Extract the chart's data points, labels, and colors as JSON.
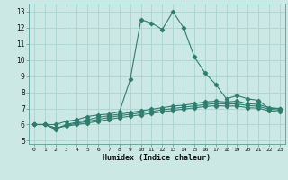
{
  "xlabel": "Humidex (Indice chaleur)",
  "x_values": [
    0,
    1,
    2,
    3,
    4,
    5,
    6,
    7,
    8,
    9,
    10,
    11,
    12,
    13,
    14,
    15,
    16,
    17,
    18,
    19,
    20,
    21,
    22,
    23
  ],
  "x_labels": [
    "0",
    "1",
    "2",
    "3",
    "4",
    "5",
    "6",
    "7",
    "8",
    "9",
    "10",
    "11",
    "12",
    "13",
    "14",
    "15",
    "16",
    "17",
    "18",
    "19",
    "20",
    "21",
    "22",
    "23"
  ],
  "line1": [
    6.0,
    6.0,
    6.0,
    6.2,
    6.3,
    6.5,
    6.6,
    6.65,
    6.8,
    8.8,
    12.5,
    12.3,
    11.9,
    13.0,
    12.0,
    10.2,
    9.2,
    8.5,
    7.6,
    7.8,
    7.6,
    7.5,
    7.0,
    7.0
  ],
  "line2": [
    6.0,
    6.0,
    5.7,
    6.0,
    6.15,
    6.3,
    6.45,
    6.55,
    6.65,
    6.75,
    6.85,
    6.95,
    7.05,
    7.15,
    7.2,
    7.3,
    7.4,
    7.45,
    7.4,
    7.45,
    7.3,
    7.25,
    7.05,
    7.0
  ],
  "line3": [
    6.0,
    6.0,
    5.75,
    5.95,
    6.08,
    6.2,
    6.32,
    6.44,
    6.55,
    6.64,
    6.73,
    6.82,
    6.91,
    7.0,
    7.08,
    7.16,
    7.24,
    7.3,
    7.28,
    7.28,
    7.18,
    7.14,
    6.95,
    6.9
  ],
  "line4": [
    6.0,
    6.0,
    5.8,
    5.9,
    6.0,
    6.1,
    6.2,
    6.32,
    6.43,
    6.52,
    6.61,
    6.7,
    6.79,
    6.88,
    6.96,
    7.04,
    7.12,
    7.17,
    7.15,
    7.15,
    7.05,
    7.02,
    6.85,
    6.8
  ],
  "line_color": "#2e7d6e",
  "bg_color": "#cce8e4",
  "grid_color": "#a8d4cf",
  "ylim": [
    4.8,
    13.5
  ],
  "yticks": [
    5,
    6,
    7,
    8,
    9,
    10,
    11,
    12,
    13
  ],
  "xlim": [
    -0.5,
    23.5
  ]
}
